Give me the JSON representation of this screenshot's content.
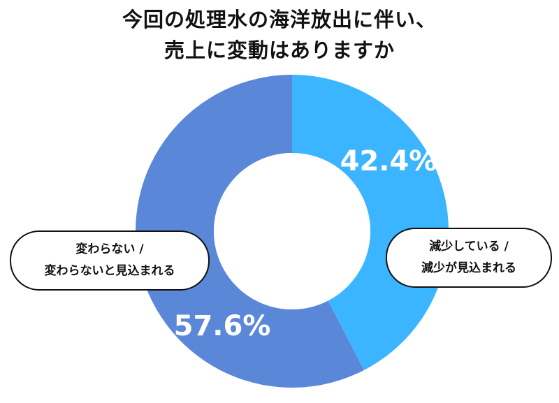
{
  "title_lines": [
    "今回の処理水の海洋放出に伴い、",
    "売上に変動はありますか"
  ],
  "chart_data": {
    "type": "pie",
    "donut": true,
    "title": "今回の処理水の海洋放出に伴い、売上に変動はありますか",
    "slices": [
      {
        "name": "減少している / 減少が見込まれる",
        "label_lines": [
          "減少している /",
          "減少が見込まれる"
        ],
        "value": 42.4,
        "value_label": "42.4%",
        "color": "#3bb5ff"
      },
      {
        "name": "変わらない / 変わらないと見込まれる",
        "label_lines": [
          "変わらない /",
          "変わらないと見込まれる"
        ],
        "value": 57.6,
        "value_label": "57.6%",
        "color": "#5b87d8"
      }
    ]
  }
}
